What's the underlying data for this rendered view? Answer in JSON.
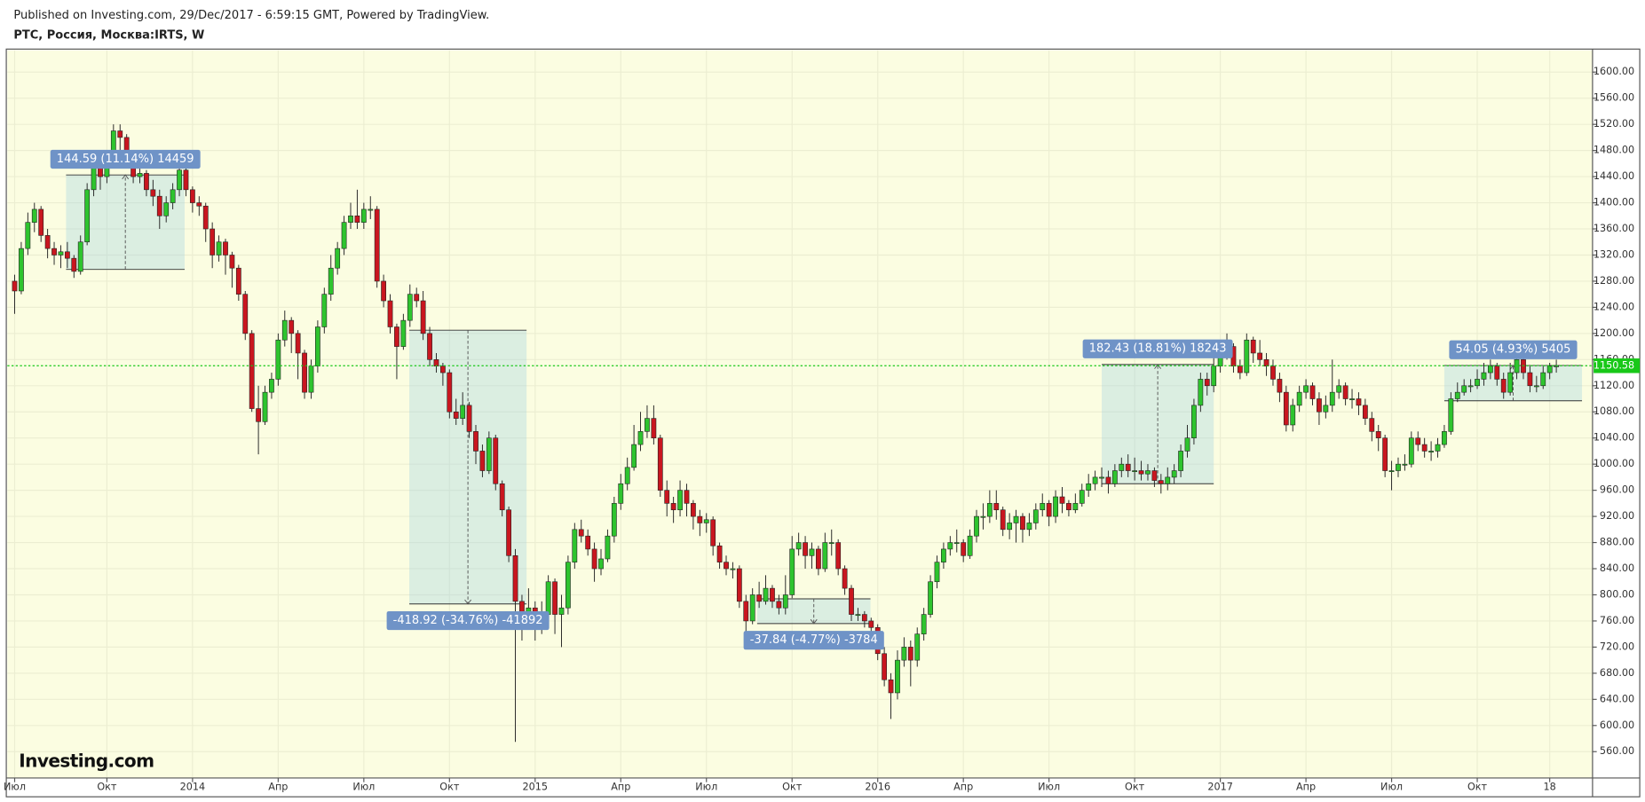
{
  "chart_data": {
    "type": "candlestick",
    "published": "Published on Investing.com, 29/Dec/2017 - 6:59:15 GMT, Powered by TradingView.",
    "title": "РТС, Россия, Москва:IRTS, W",
    "watermark": "Investing.com",
    "up_color": "#2ec42e",
    "down_color": "#c9161f",
    "last_price": 1150.58,
    "last_price_color": "#19c819",
    "grid": true,
    "xlim": [
      -1.11,
      239.5
    ],
    "ylim": [
      519.7,
      1633.6
    ],
    "xticks": [
      {
        "value": 0,
        "label": "Июл"
      },
      {
        "value": 14,
        "label": "Окт"
      },
      {
        "value": 27,
        "label": "2014"
      },
      {
        "value": 40,
        "label": "Апр"
      },
      {
        "value": 53,
        "label": "Июл"
      },
      {
        "value": 66,
        "label": "Окт"
      },
      {
        "value": 79,
        "label": "2015"
      },
      {
        "value": 92,
        "label": "Апр"
      },
      {
        "value": 105,
        "label": "Июл"
      },
      {
        "value": 118,
        "label": "Окт"
      },
      {
        "value": 131,
        "label": "2016"
      },
      {
        "value": 144,
        "label": "Апр"
      },
      {
        "value": 157,
        "label": "Июл"
      },
      {
        "value": 170,
        "label": "Окт"
      },
      {
        "value": 183,
        "label": "2017"
      },
      {
        "value": 196,
        "label": "Апр"
      },
      {
        "value": 209,
        "label": "Июл"
      },
      {
        "value": 222,
        "label": "Окт"
      },
      {
        "value": 233,
        "label": "18"
      }
    ],
    "yticks": [
      {
        "value": 560,
        "label": "560.00"
      },
      {
        "value": 600,
        "label": "600.00"
      },
      {
        "value": 640,
        "label": "640.00"
      },
      {
        "value": 680,
        "label": "680.00"
      },
      {
        "value": 720,
        "label": "720.00"
      },
      {
        "value": 760,
        "label": "760.00"
      },
      {
        "value": 800,
        "label": "800.00"
      },
      {
        "value": 840,
        "label": "840.00"
      },
      {
        "value": 880,
        "label": "880.00"
      },
      {
        "value": 920,
        "label": "920.00"
      },
      {
        "value": 960,
        "label": "960.00"
      },
      {
        "value": 1000,
        "label": "1000.00"
      },
      {
        "value": 1040,
        "label": "1040.00"
      },
      {
        "value": 1080,
        "label": "1080.00"
      },
      {
        "value": 1120,
        "label": "1120.00"
      },
      {
        "value": 1160,
        "label": "1160.00"
      },
      {
        "value": 1200,
        "label": "1200.00"
      },
      {
        "value": 1240,
        "label": "1240.00"
      },
      {
        "value": 1280,
        "label": "1280.00"
      },
      {
        "value": 1320,
        "label": "1320.00"
      },
      {
        "value": 1360,
        "label": "1360.00"
      },
      {
        "value": 1400,
        "label": "1400.00"
      },
      {
        "value": 1440,
        "label": "1440.00"
      },
      {
        "value": 1480,
        "label": "1480.00"
      },
      {
        "value": 1520,
        "label": "1520.00"
      },
      {
        "value": 1560,
        "label": "1560.00"
      },
      {
        "value": 1600,
        "label": "1600.00"
      }
    ],
    "open": [
      1280,
      1265,
      1330,
      1370,
      1390,
      1350,
      1330,
      1320,
      1325,
      1315,
      1295,
      1340,
      1420,
      1460,
      1440,
      1470,
      1510,
      1500,
      1470,
      1440,
      1445,
      1420,
      1410,
      1380,
      1400,
      1420,
      1450,
      1420,
      1400,
      1395,
      1360,
      1320,
      1340,
      1320,
      1300,
      1260,
      1200,
      1085,
      1065,
      1110,
      1130,
      1190,
      1220,
      1200,
      1170,
      1110,
      1150,
      1210,
      1260,
      1300,
      1330,
      1370,
      1380,
      1370,
      1390,
      1390,
      1280,
      1250,
      1210,
      1180,
      1220,
      1260,
      1250,
      1200,
      1160,
      1150,
      1140,
      1080,
      1070,
      1090,
      1050,
      1020,
      990,
      1040,
      970,
      930,
      860,
      790,
      770,
      780,
      760,
      770,
      820,
      770,
      780,
      850,
      900,
      890,
      870,
      840,
      855,
      890,
      940,
      970,
      995,
      1030,
      1050,
      1070,
      1040,
      960,
      940,
      930,
      960,
      940,
      920,
      910,
      915,
      875,
      850,
      840,
      840,
      790,
      760,
      800,
      790,
      810,
      790,
      780,
      800,
      870,
      880,
      860,
      870,
      840,
      880,
      880,
      840,
      810,
      770,
      770,
      760,
      750,
      710,
      670,
      650,
      700,
      720,
      700,
      740,
      770,
      820,
      850,
      870,
      880,
      880,
      860,
      890,
      920,
      920,
      940,
      930,
      900,
      910,
      920,
      900,
      910,
      930,
      940,
      920,
      950,
      940,
      930,
      940,
      960,
      970,
      980,
      980,
      970,
      990,
      1000,
      990,
      990,
      985,
      990,
      975,
      970,
      980,
      990,
      1020,
      1040,
      1090,
      1130,
      1120,
      1150,
      1170,
      1180,
      1150,
      1140,
      1190,
      1170,
      1160,
      1150,
      1130,
      1110,
      1060,
      1090,
      1110,
      1120,
      1100,
      1080,
      1090,
      1110,
      1120,
      1100,
      1100,
      1090,
      1070,
      1050,
      1040,
      990,
      990,
      1000,
      1000,
      1040,
      1030,
      1020,
      1020,
      1030,
      1050,
      1100,
      1110,
      1120,
      1120,
      1130,
      1140,
      1150,
      1130,
      1110,
      1140,
      1160,
      1140,
      1120,
      1120,
      1140,
      1150
    ],
    "high": [
      1290,
      1340,
      1385,
      1400,
      1395,
      1360,
      1340,
      1335,
      1340,
      1320,
      1350,
      1430,
      1470,
      1465,
      1480,
      1520,
      1520,
      1505,
      1480,
      1460,
      1450,
      1435,
      1420,
      1410,
      1430,
      1455,
      1455,
      1425,
      1410,
      1400,
      1370,
      1350,
      1345,
      1325,
      1305,
      1265,
      1205,
      1120,
      1120,
      1140,
      1200,
      1235,
      1225,
      1205,
      1175,
      1160,
      1220,
      1270,
      1320,
      1340,
      1380,
      1400,
      1420,
      1400,
      1410,
      1395,
      1290,
      1260,
      1215,
      1230,
      1275,
      1270,
      1265,
      1210,
      1170,
      1155,
      1145,
      1100,
      1110,
      1095,
      1060,
      1030,
      1050,
      1045,
      975,
      935,
      870,
      800,
      810,
      790,
      790,
      830,
      825,
      800,
      860,
      910,
      915,
      900,
      880,
      870,
      900,
      950,
      985,
      1010,
      1060,
      1080,
      1090,
      1090,
      1045,
      975,
      950,
      975,
      970,
      945,
      930,
      925,
      920,
      880,
      860,
      850,
      845,
      800,
      810,
      820,
      830,
      815,
      800,
      830,
      890,
      895,
      890,
      880,
      875,
      895,
      900,
      885,
      845,
      815,
      780,
      775,
      765,
      755,
      720,
      680,
      715,
      735,
      730,
      750,
      780,
      830,
      860,
      880,
      890,
      900,
      885,
      900,
      930,
      940,
      960,
      960,
      935,
      925,
      930,
      925,
      925,
      940,
      955,
      945,
      960,
      965,
      945,
      955,
      970,
      985,
      990,
      995,
      990,
      1000,
      1010,
      1015,
      1010,
      1005,
      1000,
      995,
      985,
      995,
      1000,
      1030,
      1060,
      1100,
      1140,
      1140,
      1165,
      1185,
      1200,
      1185,
      1160,
      1200,
      1195,
      1190,
      1170,
      1160,
      1140,
      1120,
      1100,
      1120,
      1130,
      1125,
      1110,
      1105,
      1160,
      1130,
      1125,
      1115,
      1110,
      1100,
      1080,
      1060,
      1045,
      1005,
      1010,
      1015,
      1050,
      1050,
      1040,
      1035,
      1040,
      1060,
      1110,
      1125,
      1130,
      1130,
      1145,
      1155,
      1160,
      1155,
      1140,
      1155,
      1170,
      1165,
      1150,
      1135,
      1150,
      1155,
      1160
    ],
    "low": [
      1230,
      1260,
      1320,
      1355,
      1340,
      1315,
      1305,
      1300,
      1300,
      1285,
      1290,
      1335,
      1410,
      1420,
      1430,
      1460,
      1480,
      1455,
      1430,
      1430,
      1410,
      1395,
      1360,
      1370,
      1390,
      1410,
      1410,
      1385,
      1380,
      1340,
      1300,
      1310,
      1290,
      1270,
      1250,
      1190,
      1080,
      1015,
      1060,
      1100,
      1120,
      1180,
      1170,
      1130,
      1100,
      1100,
      1140,
      1200,
      1250,
      1290,
      1320,
      1360,
      1360,
      1360,
      1375,
      1270,
      1240,
      1200,
      1130,
      1175,
      1210,
      1240,
      1190,
      1150,
      1140,
      1120,
      1070,
      1060,
      1060,
      1040,
      1000,
      980,
      985,
      960,
      920,
      850,
      575,
      730,
      760,
      730,
      740,
      760,
      740,
      720,
      770,
      840,
      880,
      860,
      820,
      830,
      850,
      880,
      930,
      960,
      990,
      1020,
      1040,
      1030,
      950,
      920,
      910,
      920,
      920,
      900,
      890,
      895,
      860,
      840,
      830,
      825,
      780,
      720,
      755,
      780,
      785,
      780,
      770,
      770,
      795,
      860,
      840,
      840,
      830,
      835,
      860,
      830,
      800,
      760,
      760,
      750,
      735,
      700,
      660,
      610,
      640,
      690,
      660,
      690,
      730,
      765,
      810,
      840,
      860,
      865,
      850,
      855,
      880,
      900,
      910,
      915,
      890,
      885,
      880,
      880,
      890,
      900,
      920,
      905,
      910,
      925,
      920,
      925,
      935,
      950,
      960,
      965,
      955,
      965,
      980,
      980,
      975,
      975,
      975,
      965,
      955,
      960,
      970,
      980,
      1010,
      1030,
      1080,
      1105,
      1110,
      1140,
      1160,
      1140,
      1130,
      1135,
      1155,
      1150,
      1135,
      1120,
      1095,
      1050,
      1050,
      1080,
      1100,
      1090,
      1060,
      1070,
      1080,
      1100,
      1090,
      1085,
      1075,
      1060,
      1035,
      1020,
      980,
      960,
      980,
      990,
      995,
      1020,
      1010,
      1005,
      1010,
      1025,
      1045,
      1095,
      1105,
      1110,
      1115,
      1120,
      1130,
      1120,
      1100,
      1105,
      1130,
      1130,
      1110,
      1110,
      1115,
      1130,
      1140
    ],
    "close": [
      1265,
      1330,
      1370,
      1390,
      1350,
      1330,
      1320,
      1325,
      1315,
      1295,
      1340,
      1420,
      1460,
      1440,
      1470,
      1510,
      1500,
      1470,
      1440,
      1445,
      1420,
      1410,
      1380,
      1400,
      1420,
      1450,
      1420,
      1400,
      1395,
      1360,
      1320,
      1340,
      1320,
      1300,
      1260,
      1200,
      1085,
      1065,
      1110,
      1130,
      1190,
      1220,
      1200,
      1170,
      1110,
      1150,
      1210,
      1260,
      1300,
      1330,
      1370,
      1380,
      1370,
      1390,
      1390,
      1280,
      1250,
      1210,
      1180,
      1220,
      1260,
      1250,
      1200,
      1160,
      1150,
      1140,
      1080,
      1070,
      1090,
      1050,
      1020,
      990,
      1040,
      970,
      930,
      860,
      790,
      770,
      780,
      760,
      770,
      820,
      770,
      780,
      850,
      900,
      890,
      870,
      840,
      855,
      890,
      940,
      970,
      995,
      1030,
      1050,
      1070,
      1040,
      960,
      940,
      930,
      960,
      940,
      920,
      910,
      915,
      875,
      850,
      840,
      840,
      790,
      760,
      800,
      790,
      810,
      790,
      780,
      800,
      870,
      880,
      860,
      870,
      840,
      880,
      880,
      840,
      810,
      770,
      770,
      760,
      750,
      710,
      670,
      650,
      700,
      720,
      700,
      740,
      770,
      820,
      850,
      870,
      880,
      880,
      860,
      890,
      920,
      920,
      940,
      930,
      900,
      910,
      920,
      900,
      910,
      930,
      940,
      920,
      950,
      940,
      930,
      940,
      960,
      970,
      980,
      980,
      970,
      990,
      1000,
      990,
      990,
      985,
      990,
      975,
      970,
      980,
      990,
      1020,
      1040,
      1090,
      1130,
      1120,
      1150,
      1170,
      1180,
      1150,
      1140,
      1190,
      1170,
      1160,
      1150,
      1130,
      1110,
      1060,
      1090,
      1110,
      1120,
      1100,
      1080,
      1090,
      1110,
      1120,
      1100,
      1100,
      1090,
      1070,
      1050,
      1040,
      990,
      990,
      1000,
      1000,
      1040,
      1030,
      1020,
      1020,
      1030,
      1050,
      1100,
      1110,
      1120,
      1120,
      1130,
      1140,
      1150,
      1130,
      1110,
      1140,
      1160,
      1140,
      1120,
      1120,
      1140,
      1150,
      1150.58
    ],
    "annotations": [
      {
        "label": "144.59 (11.14%) 14459",
        "start": 7.8,
        "end": 25.8,
        "from": 1298,
        "to": 1442.59
      },
      {
        "label": "-418.92 (-34.76%) -41892",
        "start": 59.9,
        "end": 77.7,
        "from": 1205,
        "to": 786.08
      },
      {
        "label": "-37.84 (-4.77%) -3784",
        "start": 112.7,
        "end": 129.9,
        "from": 793.84,
        "to": 756
      },
      {
        "label": "182.43 (18.81%) 18243",
        "start": 165,
        "end": 182,
        "from": 970,
        "to": 1152.43
      },
      {
        "label": "54.05 (4.93%) 5405",
        "start": 217,
        "end": 237.9,
        "from": 1097,
        "to": 1151.05
      }
    ]
  }
}
